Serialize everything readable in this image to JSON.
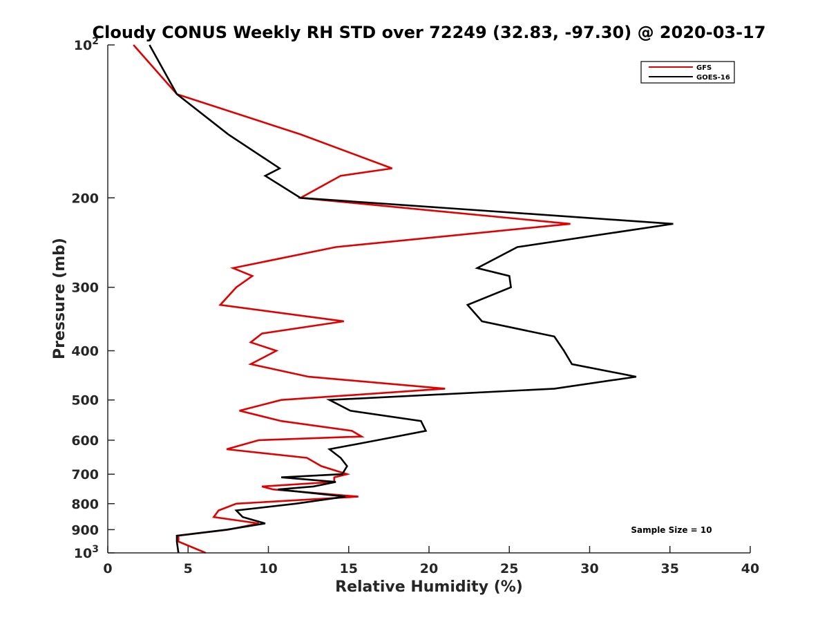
{
  "chart_data": {
    "type": "line",
    "title": "Cloudy CONUS Weekly RH STD over 72249 (32.83, -97.30) @ 2020-03-17",
    "xlabel": "Relative Humidity (%)",
    "ylabel": "Pressure (mb)",
    "xlim": [
      0,
      40
    ],
    "ylim": [
      100,
      1000
    ],
    "y_scale": "log",
    "y_reversed": true,
    "x_ticks": [
      "0",
      "5",
      "10",
      "15",
      "20",
      "25",
      "30",
      "35",
      "40"
    ],
    "y_ticks": [
      {
        "value": 100,
        "base": "10",
        "exp": "2"
      },
      {
        "value": 200,
        "label": "200"
      },
      {
        "value": 300,
        "label": "300"
      },
      {
        "value": 400,
        "label": "400"
      },
      {
        "value": 500,
        "label": "500"
      },
      {
        "value": 600,
        "label": "600"
      },
      {
        "value": 700,
        "label": "700"
      },
      {
        "value": 800,
        "label": "800"
      },
      {
        "value": 900,
        "label": "900"
      },
      {
        "value": 1000,
        "base": "10",
        "exp": "3"
      }
    ],
    "legend_position": "top-right",
    "grid": false,
    "annotation": "Sample Size = 10",
    "series": [
      {
        "name": "GFS",
        "color": "#e00000",
        "points": [
          [
            1.6,
            100
          ],
          [
            4.3,
            125
          ],
          [
            12.0,
            150
          ],
          [
            17.7,
            175
          ],
          [
            14.5,
            181
          ],
          [
            12.0,
            200
          ],
          [
            28.8,
            225
          ],
          [
            14.2,
            250
          ],
          [
            7.8,
            275
          ],
          [
            9.0,
            285
          ],
          [
            8.0,
            300
          ],
          [
            7.0,
            325
          ],
          [
            14.7,
            350
          ],
          [
            9.6,
            370
          ],
          [
            8.9,
            385
          ],
          [
            10.5,
            400
          ],
          [
            8.9,
            425
          ],
          [
            12.5,
            450
          ],
          [
            21.0,
            475
          ],
          [
            10.8,
            500
          ],
          [
            8.2,
            525
          ],
          [
            10.8,
            550
          ],
          [
            15.2,
            575
          ],
          [
            15.8,
            590
          ],
          [
            9.4,
            600
          ],
          [
            7.4,
            625
          ],
          [
            12.4,
            650
          ],
          [
            13.3,
            675
          ],
          [
            14.9,
            700
          ],
          [
            14.1,
            710
          ],
          [
            14.1,
            725
          ],
          [
            9.6,
            740
          ],
          [
            10.3,
            750
          ],
          [
            15.6,
            775
          ],
          [
            8.0,
            800
          ],
          [
            6.9,
            825
          ],
          [
            6.6,
            850
          ],
          [
            9.4,
            875
          ],
          [
            7.5,
            900
          ],
          [
            4.4,
            925
          ],
          [
            4.4,
            950
          ],
          [
            6.1,
            1000
          ]
        ]
      },
      {
        "name": "GOES-16",
        "color": "#000000",
        "points": [
          [
            2.6,
            100
          ],
          [
            4.3,
            125
          ],
          [
            7.5,
            150
          ],
          [
            10.7,
            175
          ],
          [
            9.8,
            181
          ],
          [
            12.0,
            200
          ],
          [
            35.2,
            225
          ],
          [
            25.5,
            250
          ],
          [
            23.0,
            275
          ],
          [
            25.0,
            285
          ],
          [
            25.1,
            300
          ],
          [
            22.4,
            325
          ],
          [
            23.3,
            350
          ],
          [
            27.8,
            375
          ],
          [
            28.4,
            400
          ],
          [
            28.9,
            425
          ],
          [
            32.9,
            450
          ],
          [
            27.8,
            475
          ],
          [
            13.8,
            500
          ],
          [
            15.1,
            525
          ],
          [
            19.5,
            550
          ],
          [
            19.8,
            575
          ],
          [
            16.8,
            600
          ],
          [
            13.8,
            625
          ],
          [
            14.5,
            650
          ],
          [
            14.9,
            675
          ],
          [
            14.6,
            700
          ],
          [
            10.8,
            710
          ],
          [
            14.2,
            725
          ],
          [
            12.8,
            740
          ],
          [
            10.6,
            750
          ],
          [
            14.8,
            775
          ],
          [
            11.7,
            800
          ],
          [
            8.0,
            825
          ],
          [
            8.4,
            850
          ],
          [
            9.8,
            875
          ],
          [
            7.4,
            900
          ],
          [
            4.3,
            925
          ],
          [
            4.3,
            950
          ],
          [
            4.4,
            1000
          ]
        ]
      }
    ]
  }
}
